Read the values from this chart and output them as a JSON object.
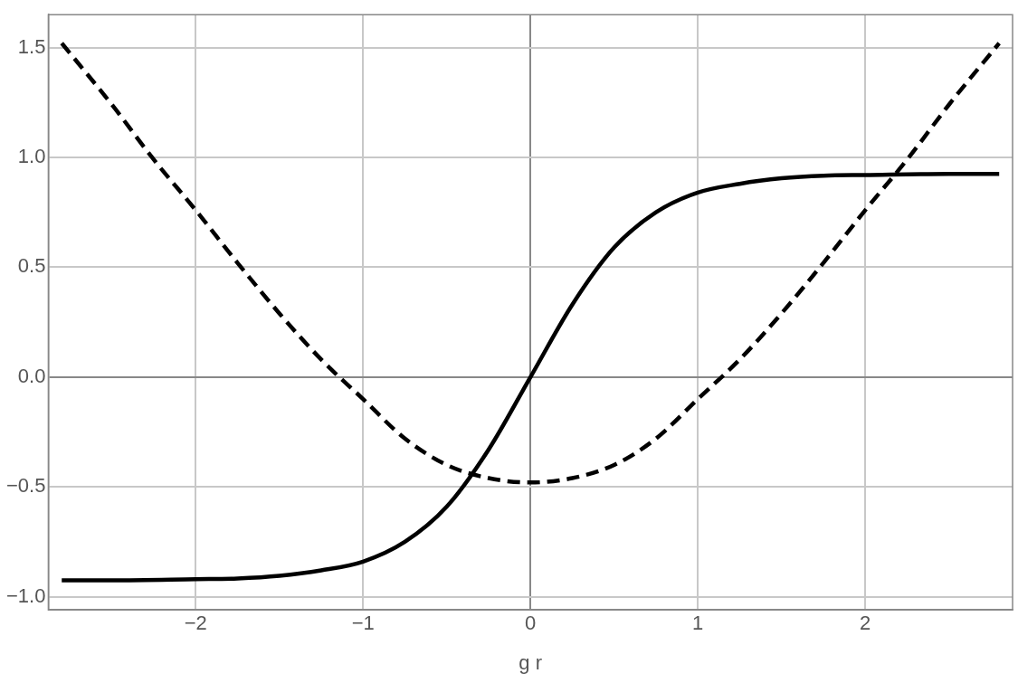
{
  "chart_data": {
    "type": "line",
    "xlabel": "g r",
    "xlim": [
      -2.88,
      2.88
    ],
    "ylim": [
      -1.06,
      1.65
    ],
    "xticks": [
      {
        "value": -2,
        "label": "−2"
      },
      {
        "value": -1,
        "label": "−1"
      },
      0,
      1,
      2
    ],
    "yticks": [
      {
        "value": -1,
        "label": "−1.0"
      },
      {
        "value": -0.5,
        "label": "−0.5"
      },
      {
        "value": 0,
        "label": "0.0"
      },
      0.5,
      {
        "value": 1,
        "label": "1.0"
      },
      1.5
    ],
    "grid": true,
    "legend": false,
    "marker": "none",
    "series": [
      {
        "color": "#000000",
        "line_style": "solid",
        "x": [
          -2.8,
          -2.5,
          -2,
          -1.75,
          -1.5,
          -1.25,
          -1,
          -0.75,
          -0.5,
          -0.25,
          0,
          0.25,
          0.5,
          0.75,
          1,
          1.25,
          1.5,
          1.75,
          2,
          2.5,
          2.8
        ],
        "values": [
          -0.925,
          -0.925,
          -0.92,
          -0.917,
          -0.905,
          -0.88,
          -0.84,
          -0.75,
          -0.59,
          -0.33,
          0,
          0.33,
          0.59,
          0.75,
          0.84,
          0.88,
          0.905,
          0.917,
          0.92,
          0.925,
          0.925
        ]
      },
      {
        "color": "#000000",
        "line_style": "dashed",
        "x": [
          -2.8,
          -2.5,
          -2.25,
          -2,
          -1.75,
          -1.5,
          -1.25,
          -1,
          -0.75,
          -0.5,
          -0.25,
          0,
          0.25,
          0.5,
          0.75,
          1,
          1.25,
          1.5,
          1.75,
          2,
          2.25,
          2.5,
          2.8
        ],
        "values": [
          1.52,
          1.24,
          0.99,
          0.76,
          0.52,
          0.29,
          0.08,
          -0.1,
          -0.28,
          -0.4,
          -0.46,
          -0.48,
          -0.46,
          -0.4,
          -0.28,
          -0.1,
          0.08,
          0.29,
          0.52,
          0.76,
          0.99,
          1.24,
          1.52
        ]
      }
    ]
  }
}
